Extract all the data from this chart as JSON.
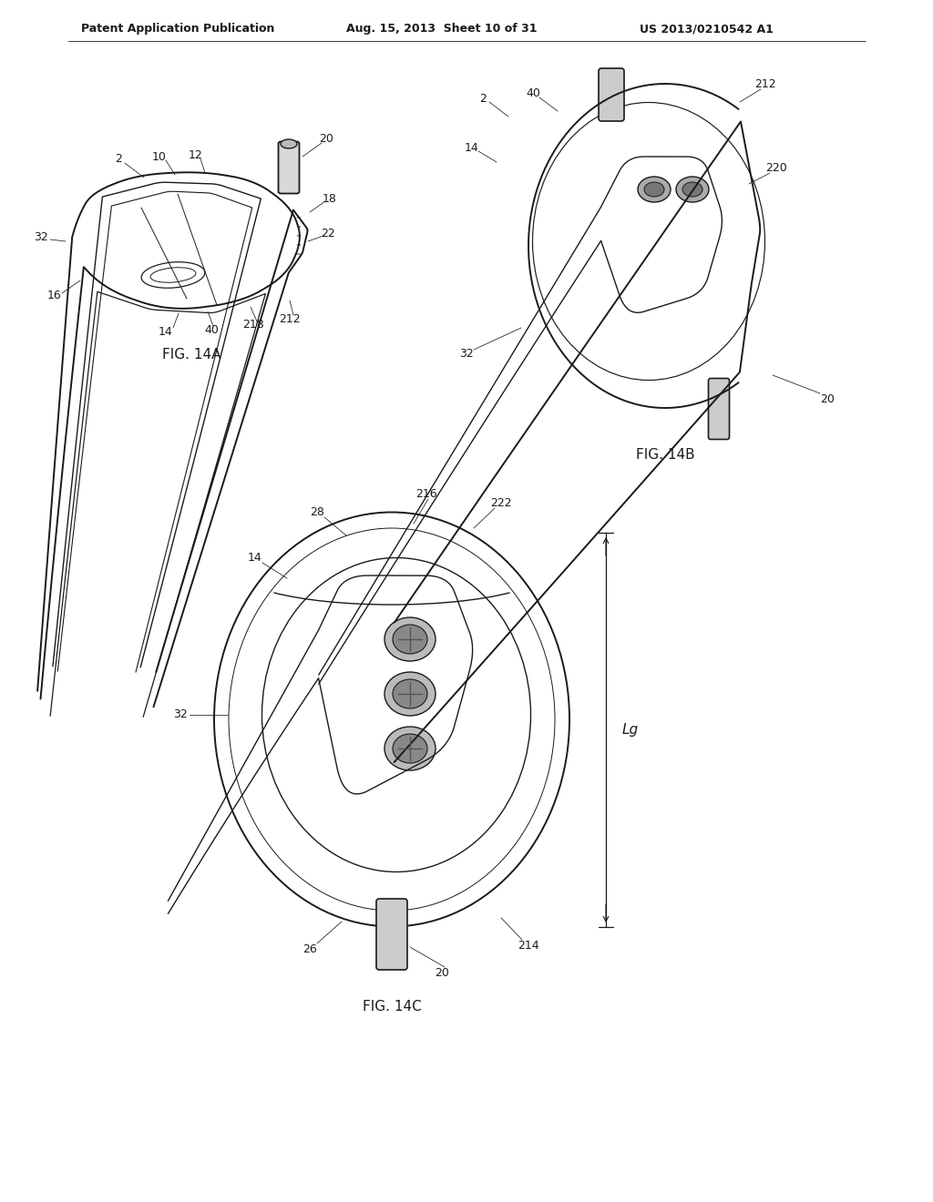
{
  "bg_color": "#ffffff",
  "header_left": "Patent Application Publication",
  "header_center": "Aug. 15, 2013  Sheet 10 of 31",
  "header_right": "US 2013/0210542 A1",
  "fig14a_label": "FIG. 14A",
  "fig14b_label": "FIG. 14B",
  "fig14c_label": "FIG. 14C",
  "line_color": "#1a1a1a",
  "text_color": "#1a1a1a",
  "header_font_size": 9,
  "label_font_size": 11,
  "ref_font_size": 9
}
